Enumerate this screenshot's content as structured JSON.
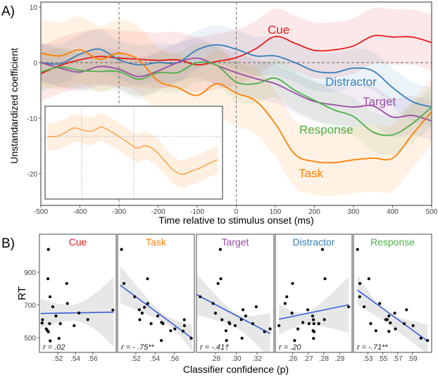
{
  "chart_data": [
    {
      "type": "line",
      "panel_label": "A)",
      "xlabel": "Time relative to stimulus onset (ms)",
      "ylabel": "Unstandardized coefficient",
      "xlim": [
        -500,
        500
      ],
      "ylim": [
        -26,
        11
      ],
      "xticks": [
        -500,
        -400,
        -300,
        -200,
        -100,
        0,
        100,
        200,
        300,
        400,
        500
      ],
      "yticks": [
        10,
        0,
        -10,
        -20
      ],
      "reference_lines": {
        "x": [
          -300,
          0
        ],
        "y": [
          0
        ]
      },
      "grid": false,
      "x": [
        -500,
        -450,
        -400,
        -350,
        -300,
        -250,
        -200,
        -150,
        -100,
        -50,
        0,
        50,
        100,
        150,
        200,
        250,
        300,
        350,
        400,
        450,
        500
      ],
      "series": [
        {
          "name": "Cue",
          "color": "#e41a1c",
          "ci_halfwidth": 5,
          "values": [
            -2,
            -0.5,
            0.5,
            1.1,
            0.8,
            0.6,
            0.4,
            0.5,
            -0.4,
            0.2,
            0.9,
            2.5,
            4.7,
            3.5,
            2.2,
            2.3,
            3.0,
            4.8,
            4.6,
            4.6,
            3.6
          ]
        },
        {
          "name": "Distractor",
          "color": "#377eb8",
          "ci_halfwidth": 3.5,
          "values": [
            0,
            -0.2,
            1.5,
            2.4,
            0.5,
            -0.4,
            0,
            0,
            2.3,
            3.2,
            2.4,
            1.2,
            1.2,
            0,
            -1.5,
            -1.8,
            -1,
            -1.5,
            -4.5,
            -7,
            -8
          ]
        },
        {
          "name": "Target",
          "color": "#984ea3",
          "ci_halfwidth": 3.5,
          "values": [
            0,
            -1,
            -1.7,
            -0.7,
            -1.2,
            -2.5,
            -1.5,
            0,
            0.8,
            -0.5,
            -1.8,
            -2.9,
            -3.8,
            -5.5,
            -7,
            -7.6,
            -8,
            -7.8,
            -9.8,
            -9.5,
            -10.5
          ]
        },
        {
          "name": "Response",
          "color": "#4daf4a",
          "ci_halfwidth": 3.5,
          "values": [
            -1.7,
            -0.8,
            -1.4,
            -1.6,
            -1.6,
            -3,
            -1.8,
            -1.8,
            0,
            -0.5,
            -3.5,
            -3.8,
            -2.8,
            -5,
            -6.8,
            -8.5,
            -9.7,
            -12.5,
            -13,
            -11,
            -8
          ]
        },
        {
          "name": "Task",
          "color": "#ff7f00",
          "ci_halfwidth": 6,
          "values": [
            1.7,
            1.2,
            2.3,
            0.6,
            1.7,
            0.5,
            -3.3,
            -4.5,
            -5.9,
            -3.8,
            -5.5,
            -6.9,
            -11,
            -16.5,
            -17.8,
            -18,
            -17.5,
            -17.2,
            -17.2,
            -13,
            -8.8
          ]
        }
      ],
      "inset": {
        "series": "Task",
        "color": "#ff7f00",
        "values": [
          0,
          0,
          0.5,
          1.1,
          0.8,
          0.7,
          1.2,
          0.7,
          0,
          -0.8,
          -1.5,
          -1.2,
          -1.8,
          -3,
          -4.3,
          -4.9,
          -4.5,
          -4.1,
          -3.5,
          -3.0
        ],
        "ci_halfwidth": 1.8
      }
    },
    {
      "type": "scatter",
      "panel_label": "B)",
      "ylabel": "RT",
      "xlabel": "Classifier confidence (p)",
      "ylim": [
        415,
        1130
      ],
      "yticks": [
        500,
        700,
        900
      ],
      "fit_color": "#3a5fd9",
      "panels": [
        {
          "title": "Cue",
          "color": "#e41a1c",
          "r_text": "r = .02",
          "xlim": [
            0.4986,
            0.587
          ],
          "xticks": [
            0.52,
            0.54,
            0.56
          ],
          "xtick_labels": [
            ".52",
            ".54",
            ".56"
          ],
          "points": [
            [
              0.5089,
              1039
            ],
            [
              0.5084,
              860
            ],
            [
              0.53,
              831
            ],
            [
              0.5308,
              709
            ],
            [
              0.514,
              689
            ],
            [
              0.5108,
              750
            ],
            [
              0.5022,
              610
            ],
            [
              0.5016,
              590
            ],
            [
              0.5176,
              633
            ],
            [
              0.5103,
              586
            ],
            [
              0.5227,
              586
            ],
            [
              0.5065,
              554
            ],
            [
              0.5076,
              546
            ],
            [
              0.5089,
              536
            ],
            [
              0.511,
              481
            ],
            [
              0.5211,
              496
            ],
            [
              0.5386,
              574
            ],
            [
              0.5441,
              651
            ],
            [
              0.5543,
              611
            ],
            [
              0.5832,
              669
            ]
          ],
          "fit": [
            [
              0.5,
              648
            ],
            [
              0.584,
              656
            ]
          ],
          "ci": [
            [
              0.5,
              560,
              735
            ],
            [
              0.535,
              605,
              700
            ],
            [
              0.56,
              560,
              760
            ],
            [
              0.584,
              445,
              870
            ]
          ]
        },
        {
          "title": "Task",
          "color": "#ff7f00",
          "r_text": "r = - .75**",
          "xlim": [
            0.501,
            0.581
          ],
          "xticks": [
            0.52,
            0.54,
            0.56
          ],
          "xtick_labels": [
            ".52",
            ".54",
            ".56"
          ],
          "points": [
            [
              0.5051,
              1039
            ],
            [
              0.5076,
              831
            ],
            [
              0.5188,
              750
            ],
            [
              0.5322,
              860
            ],
            [
              0.5324,
              709
            ],
            [
              0.529,
              686
            ],
            [
              0.5237,
              671
            ],
            [
              0.5266,
              650
            ],
            [
              0.5241,
              610
            ],
            [
              0.5359,
              586
            ],
            [
              0.5429,
              633
            ],
            [
              0.5468,
              594
            ],
            [
              0.5483,
              586
            ],
            [
              0.5466,
              483
            ],
            [
              0.5563,
              543
            ],
            [
              0.5607,
              554
            ],
            [
              0.5693,
              540
            ],
            [
              0.5705,
              610
            ],
            [
              0.5707,
              574
            ],
            [
              0.5778,
              497
            ]
          ],
          "fit": [
            [
              0.5036,
              821
            ],
            [
              0.5786,
              497
            ]
          ],
          "ci": [
            [
              0.5036,
              710,
              940
            ],
            [
              0.54,
              620,
              690
            ],
            [
              0.56,
              550,
              610
            ],
            [
              0.5786,
              420,
              580
            ]
          ]
        },
        {
          "title": "Target",
          "color": "#984ea3",
          "r_text": "r = -.41†",
          "xlim": [
            0.2614,
            0.3364
          ],
          "xticks": [
            0.28,
            0.3,
            0.32
          ],
          "xtick_labels": [
            ".28",
            ".30",
            ".32"
          ],
          "points": [
            [
              0.265,
              750
            ],
            [
              0.2845,
              1039
            ],
            [
              0.285,
              860
            ],
            [
              0.2823,
              831
            ],
            [
              0.2775,
              709
            ],
            [
              0.2798,
              650
            ],
            [
              0.2861,
              610
            ],
            [
              0.293,
              593
            ],
            [
              0.2936,
              586
            ],
            [
              0.29,
              543
            ],
            [
              0.2905,
              483
            ],
            [
              0.2989,
              574
            ],
            [
              0.3064,
              671
            ],
            [
              0.3091,
              633
            ],
            [
              0.3048,
              611
            ],
            [
              0.3055,
              497
            ],
            [
              0.3193,
              689
            ],
            [
              0.3159,
              586
            ],
            [
              0.3273,
              537
            ],
            [
              0.3327,
              554
            ]
          ],
          "fit": [
            [
              0.2614,
              764
            ],
            [
              0.3327,
              526
            ]
          ],
          "ci": [
            [
              0.2614,
              640,
              890
            ],
            [
              0.3,
              560,
              650
            ],
            [
              0.3327,
              380,
              650
            ]
          ]
        },
        {
          "title": "Distractor",
          "color": "#377eb8",
          "r_text": "r = .20",
          "xlim": [
            0.249,
            0.298
          ],
          "xticks": [
            0.26,
            0.27,
            0.28,
            0.29
          ],
          "xtick_labels": [
            ".26",
            ".27",
            ".28",
            ".29"
          ],
          "points": [
            [
              0.2791,
              1039
            ],
            [
              0.2807,
              860
            ],
            [
              0.26,
              831
            ],
            [
              0.2563,
              750
            ],
            [
              0.2552,
              709
            ],
            [
              0.2596,
              650
            ],
            [
              0.2697,
              671
            ],
            [
              0.2728,
              633
            ],
            [
              0.2733,
              610
            ],
            [
              0.2666,
              593
            ],
            [
              0.2705,
              586
            ],
            [
              0.2736,
              586
            ],
            [
              0.2767,
              586
            ],
            [
              0.2803,
              611
            ],
            [
              0.2634,
              554
            ],
            [
              0.2513,
              574
            ],
            [
              0.2731,
              543
            ],
            [
              0.2737,
              537
            ],
            [
              0.2734,
              496
            ],
            [
              0.2613,
              483
            ],
            [
              0.2958,
              689
            ]
          ],
          "fit": [
            [
              0.2513,
              613
            ],
            [
              0.2958,
              701
            ]
          ],
          "ci": [
            [
              0.2513,
              520,
              700
            ],
            [
              0.27,
              580,
              660
            ],
            [
              0.2958,
              530,
              870
            ]
          ]
        },
        {
          "title": "Response",
          "color": "#4daf4a",
          "r_text": "r = -.71**",
          "xlim": [
            0.5106,
            0.6159
          ],
          "xticks": [
            0.53,
            0.55,
            0.57,
            0.59
          ],
          "xtick_labels": [
            ".53",
            ".55",
            ".57",
            ".59"
          ],
          "points": [
            [
              0.516,
              1039
            ],
            [
              0.5192,
              831
            ],
            [
              0.5313,
              860
            ],
            [
              0.5189,
              750
            ],
            [
              0.5249,
              689
            ],
            [
              0.5459,
              709
            ],
            [
              0.5338,
              586
            ],
            [
              0.5408,
              543
            ],
            [
              0.5541,
              611
            ],
            [
              0.556,
              611
            ],
            [
              0.5583,
              633
            ],
            [
              0.5602,
              591
            ],
            [
              0.5583,
              539
            ],
            [
              0.5662,
              650
            ],
            [
              0.5671,
              554
            ],
            [
              0.5789,
              586
            ],
            [
              0.5821,
              671
            ],
            [
              0.5909,
              574
            ],
            [
              0.6014,
              497
            ],
            [
              0.6103,
              483
            ]
          ],
          "fit": [
            [
              0.516,
              791
            ],
            [
              0.6103,
              480
            ]
          ],
          "ci": [
            [
              0.516,
              700,
              880
            ],
            [
              0.555,
              590,
              660
            ],
            [
              0.6103,
              400,
              580
            ]
          ]
        }
      ]
    }
  ]
}
